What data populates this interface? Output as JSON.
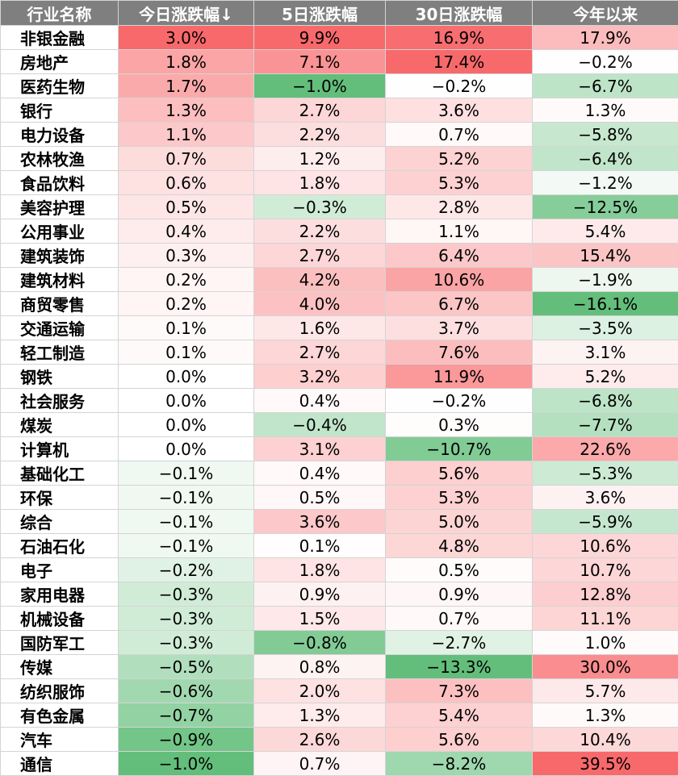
{
  "chart_data": {
    "type": "heatmap",
    "columns": [
      "行业名称",
      "今日涨跌幅↓",
      "5日涨跌幅",
      "30日涨跌幅",
      "今年以来"
    ],
    "colors": {
      "positive": "#f8696b",
      "negative": "#63be7b",
      "neutral": "#ffffff",
      "header_bg": "#7f7f7f",
      "header_text": "#ffffff"
    },
    "rows": [
      {
        "name": "非银金融",
        "values": [
          3.0,
          9.9,
          16.9,
          17.9
        ]
      },
      {
        "name": "房地产",
        "values": [
          1.8,
          7.1,
          17.4,
          -0.2
        ]
      },
      {
        "name": "医药生物",
        "values": [
          1.7,
          -1.0,
          -0.2,
          -6.7
        ]
      },
      {
        "name": "银行",
        "values": [
          1.3,
          2.7,
          3.6,
          1.3
        ]
      },
      {
        "name": "电力设备",
        "values": [
          1.1,
          2.2,
          0.7,
          -5.8
        ]
      },
      {
        "name": "农林牧渔",
        "values": [
          0.7,
          1.2,
          5.2,
          -6.4
        ]
      },
      {
        "name": "食品饮料",
        "values": [
          0.6,
          1.8,
          5.3,
          -1.2
        ]
      },
      {
        "name": "美容护理",
        "values": [
          0.5,
          -0.3,
          2.8,
          -12.5
        ]
      },
      {
        "name": "公用事业",
        "values": [
          0.4,
          2.2,
          1.1,
          5.4
        ]
      },
      {
        "name": "建筑装饰",
        "values": [
          0.3,
          2.7,
          6.4,
          15.4
        ]
      },
      {
        "name": "建筑材料",
        "values": [
          0.2,
          4.2,
          10.6,
          -1.9
        ]
      },
      {
        "name": "商贸零售",
        "values": [
          0.2,
          4.0,
          6.7,
          -16.1
        ]
      },
      {
        "name": "交通运输",
        "values": [
          0.1,
          1.6,
          3.7,
          -3.5
        ]
      },
      {
        "name": "轻工制造",
        "values": [
          0.1,
          2.7,
          7.6,
          3.1
        ]
      },
      {
        "name": "钢铁",
        "values": [
          0.0,
          3.2,
          11.9,
          5.2
        ]
      },
      {
        "name": "社会服务",
        "values": [
          0.0,
          0.4,
          -0.2,
          -6.8
        ]
      },
      {
        "name": "煤炭",
        "values": [
          0.0,
          -0.4,
          0.3,
          -7.7
        ]
      },
      {
        "name": "计算机",
        "values": [
          0.0,
          3.1,
          -10.7,
          22.6
        ]
      },
      {
        "name": "基础化工",
        "values": [
          -0.1,
          0.4,
          5.6,
          -5.3
        ]
      },
      {
        "name": "环保",
        "values": [
          -0.1,
          0.5,
          5.3,
          3.6
        ]
      },
      {
        "name": "综合",
        "values": [
          -0.1,
          3.6,
          5.0,
          -5.9
        ]
      },
      {
        "name": "石油石化",
        "values": [
          -0.1,
          0.1,
          4.8,
          10.6
        ]
      },
      {
        "name": "电子",
        "values": [
          -0.2,
          1.8,
          0.5,
          10.7
        ]
      },
      {
        "name": "家用电器",
        "values": [
          -0.3,
          0.9,
          0.9,
          12.8
        ]
      },
      {
        "name": "机械设备",
        "values": [
          -0.3,
          1.5,
          0.7,
          11.1
        ]
      },
      {
        "name": "国防军工",
        "values": [
          -0.3,
          -0.8,
          -2.7,
          1.0
        ]
      },
      {
        "name": "传媒",
        "values": [
          -0.5,
          0.8,
          -13.3,
          30.0
        ]
      },
      {
        "name": "纺织服饰",
        "values": [
          -0.6,
          2.0,
          7.3,
          5.7
        ]
      },
      {
        "name": "有色金属",
        "values": [
          -0.7,
          1.3,
          5.4,
          1.3
        ]
      },
      {
        "name": "汽车",
        "values": [
          -0.9,
          2.6,
          5.6,
          10.4
        ]
      },
      {
        "name": "通信",
        "values": [
          -1.0,
          0.7,
          -8.2,
          39.5
        ]
      }
    ]
  }
}
